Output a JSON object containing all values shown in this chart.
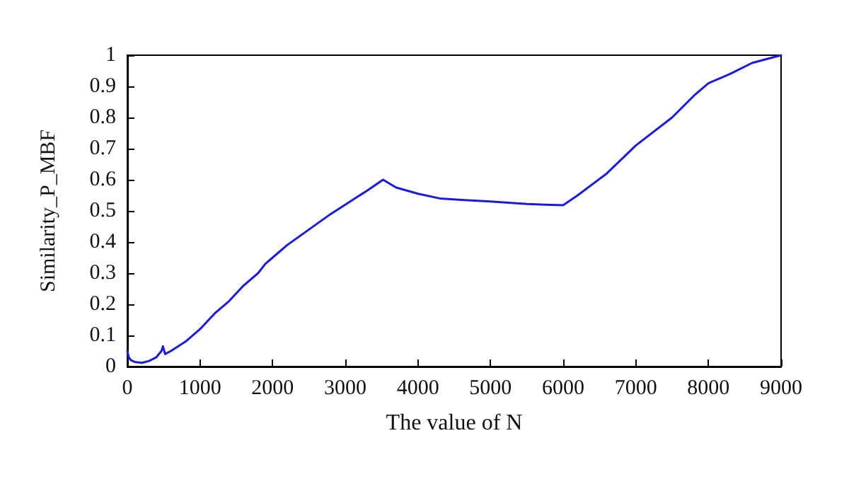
{
  "chart_data": {
    "type": "line",
    "xlabel": "The value of N",
    "ylabel": "Similarity_P_MBF",
    "x": [
      0,
      20,
      50,
      100,
      200,
      300,
      400,
      470,
      490,
      520,
      600,
      800,
      1000,
      1200,
      1400,
      1600,
      1800,
      1900,
      2000,
      2200,
      2500,
      2800,
      3000,
      3300,
      3520,
      3700,
      4000,
      4300,
      4600,
      5000,
      5500,
      6000,
      6200,
      6600,
      7000,
      7500,
      7800,
      8000,
      8300,
      8600,
      9000
    ],
    "series": [
      {
        "color": "#1a1adf",
        "values": [
          0.05,
          0.03,
          0.02,
          0.015,
          0.012,
          0.018,
          0.03,
          0.05,
          0.065,
          0.04,
          0.05,
          0.08,
          0.12,
          0.17,
          0.21,
          0.26,
          0.3,
          0.33,
          0.35,
          0.39,
          0.44,
          0.49,
          0.52,
          0.565,
          0.6,
          0.575,
          0.555,
          0.54,
          0.535,
          0.53,
          0.522,
          0.518,
          0.55,
          0.62,
          0.71,
          0.8,
          0.87,
          0.91,
          0.94,
          0.975,
          1.0
        ]
      }
    ],
    "xlim": [
      0,
      9000
    ],
    "xticks": [
      0,
      1000,
      2000,
      3000,
      4000,
      5000,
      6000,
      7000,
      8000,
      9000
    ],
    "ylim": [
      0,
      1
    ],
    "yticks": [
      0,
      0.1,
      0.2,
      0.3,
      0.4,
      0.5,
      0.6,
      0.7,
      0.8,
      0.9,
      1
    ],
    "grid": false,
    "marker": "none",
    "line_style": "solid"
  }
}
